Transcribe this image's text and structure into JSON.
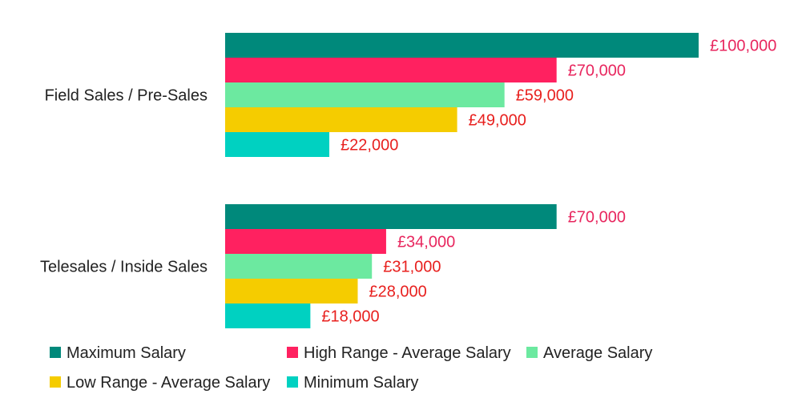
{
  "chart_data": {
    "type": "bar",
    "orientation": "horizontal",
    "categories": [
      "Field Sales / Pre-Sales",
      "Telesales / Inside Sales"
    ],
    "series": [
      {
        "name": "Maximum Salary",
        "color": "#00897b",
        "values": [
          100000,
          70000
        ],
        "labels": [
          "£100,000",
          "£70,000"
        ],
        "label_color": "#e8265e"
      },
      {
        "name": "High Range - Average Salary",
        "color": "#ff2160",
        "values": [
          70000,
          34000
        ],
        "labels": [
          "£70,000",
          "£34,000"
        ],
        "label_color": "#e8265e"
      },
      {
        "name": "Average Salary",
        "color": "#6ce9a0",
        "values": [
          59000,
          31000
        ],
        "labels": [
          "£59,000",
          "£31,000"
        ],
        "label_color": "#e8201e"
      },
      {
        "name": "Low Range - Average Salary",
        "color": "#f5cc00",
        "values": [
          49000,
          28000
        ],
        "labels": [
          "£49,000",
          "£28,000"
        ],
        "label_color": "#e8201e"
      },
      {
        "name": "Minimum Salary",
        "color": "#00d1c1",
        "values": [
          22000,
          18000
        ],
        "labels": [
          "£22,000",
          "£18,000"
        ],
        "label_color": "#e8201e"
      }
    ],
    "xlim": [
      0,
      100000
    ],
    "grid": false,
    "legend_position": "bottom"
  }
}
